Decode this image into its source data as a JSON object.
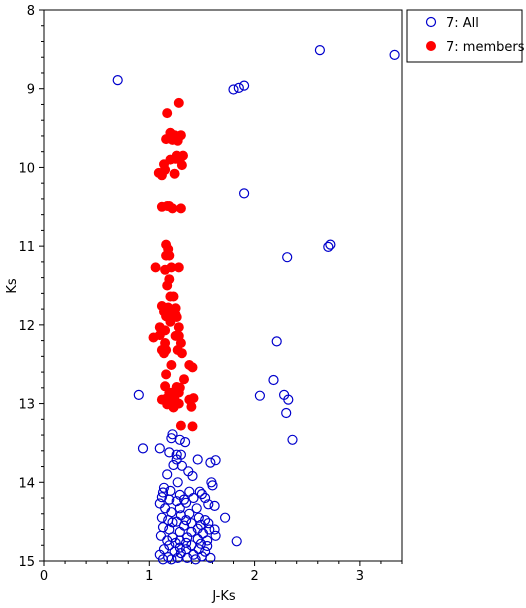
{
  "chart_data": {
    "type": "scatter",
    "xlabel": "J-Ks",
    "ylabel": "Ks",
    "xlim": [
      0,
      3.4
    ],
    "ylim": [
      8,
      15
    ],
    "y_inverted": true,
    "x_ticks": [
      0,
      1,
      2,
      3
    ],
    "y_ticks": [
      8,
      9,
      10,
      11,
      12,
      13,
      14,
      15
    ],
    "legend_placement": "top-right outside",
    "series": [
      {
        "name": "7: All",
        "marker": "open-circle",
        "color": "#0000cc",
        "points": [
          [
            2.62,
            8.51
          ],
          [
            3.33,
            8.57
          ],
          [
            0.7,
            8.89
          ],
          [
            1.9,
            8.96
          ],
          [
            1.85,
            8.99
          ],
          [
            1.8,
            9.01
          ],
          [
            1.9,
            10.33
          ],
          [
            2.72,
            10.98
          ],
          [
            2.7,
            11.01
          ],
          [
            2.31,
            11.14
          ],
          [
            2.21,
            12.21
          ],
          [
            2.18,
            12.7
          ],
          [
            0.9,
            12.89
          ],
          [
            2.05,
            12.9
          ],
          [
            2.28,
            12.89
          ],
          [
            2.32,
            12.95
          ],
          [
            2.3,
            13.12
          ],
          [
            2.36,
            13.46
          ],
          [
            0.94,
            13.57
          ],
          [
            1.1,
            13.57
          ],
          [
            1.22,
            13.39
          ],
          [
            1.21,
            13.44
          ],
          [
            1.29,
            13.46
          ],
          [
            1.34,
            13.49
          ],
          [
            1.19,
            13.62
          ],
          [
            1.26,
            13.65
          ],
          [
            1.3,
            13.65
          ],
          [
            1.26,
            13.71
          ],
          [
            1.23,
            13.78
          ],
          [
            1.31,
            13.79
          ],
          [
            1.58,
            13.75
          ],
          [
            1.63,
            13.72
          ],
          [
            1.37,
            13.86
          ],
          [
            1.46,
            13.71
          ],
          [
            1.17,
            13.9
          ],
          [
            1.41,
            13.92
          ],
          [
            1.27,
            14.0
          ],
          [
            1.59,
            14.0
          ],
          [
            1.6,
            14.04
          ],
          [
            1.14,
            14.07
          ],
          [
            1.13,
            14.13
          ],
          [
            1.2,
            14.11
          ],
          [
            1.38,
            14.12
          ],
          [
            1.48,
            14.12
          ],
          [
            1.12,
            14.19
          ],
          [
            1.29,
            14.16
          ],
          [
            1.5,
            14.15
          ],
          [
            1.19,
            14.22
          ],
          [
            1.26,
            14.24
          ],
          [
            1.33,
            14.22
          ],
          [
            1.42,
            14.2
          ],
          [
            1.53,
            14.2
          ],
          [
            1.1,
            14.27
          ],
          [
            1.35,
            14.26
          ],
          [
            1.56,
            14.28
          ],
          [
            1.62,
            14.3
          ],
          [
            1.15,
            14.33
          ],
          [
            1.29,
            14.33
          ],
          [
            1.45,
            14.33
          ],
          [
            1.21,
            14.38
          ],
          [
            1.38,
            14.4
          ],
          [
            1.3,
            14.42
          ],
          [
            1.12,
            14.45
          ],
          [
            1.47,
            14.45
          ],
          [
            1.18,
            14.48
          ],
          [
            1.26,
            14.5
          ],
          [
            1.35,
            14.48
          ],
          [
            1.53,
            14.48
          ],
          [
            1.72,
            14.45
          ],
          [
            1.22,
            14.51
          ],
          [
            1.4,
            14.52
          ],
          [
            1.49,
            14.54
          ],
          [
            1.56,
            14.52
          ],
          [
            1.13,
            14.57
          ],
          [
            1.33,
            14.55
          ],
          [
            1.19,
            14.6
          ],
          [
            1.46,
            14.59
          ],
          [
            1.57,
            14.6
          ],
          [
            1.62,
            14.6
          ],
          [
            1.29,
            14.63
          ],
          [
            1.4,
            14.63
          ],
          [
            1.51,
            14.65
          ],
          [
            1.11,
            14.68
          ],
          [
            1.22,
            14.7
          ],
          [
            1.36,
            14.7
          ],
          [
            1.63,
            14.68
          ],
          [
            1.17,
            14.74
          ],
          [
            1.29,
            14.74
          ],
          [
            1.46,
            14.72
          ],
          [
            1.55,
            14.74
          ],
          [
            1.25,
            14.77
          ],
          [
            1.35,
            14.77
          ],
          [
            1.49,
            14.78
          ],
          [
            1.83,
            14.75
          ],
          [
            1.19,
            14.8
          ],
          [
            1.4,
            14.8
          ],
          [
            1.29,
            14.83
          ],
          [
            1.55,
            14.81
          ],
          [
            1.14,
            14.85
          ],
          [
            1.35,
            14.85
          ],
          [
            1.47,
            14.85
          ],
          [
            1.24,
            14.88
          ],
          [
            1.53,
            14.88
          ],
          [
            1.1,
            14.92
          ],
          [
            1.3,
            14.9
          ],
          [
            1.42,
            14.92
          ],
          [
            1.18,
            14.95
          ],
          [
            1.27,
            14.96
          ],
          [
            1.36,
            14.96
          ],
          [
            1.5,
            14.94
          ],
          [
            1.58,
            14.96
          ],
          [
            1.13,
            14.98
          ],
          [
            1.21,
            14.98
          ],
          [
            1.44,
            14.98
          ]
        ]
      },
      {
        "name": "7: members",
        "marker": "filled-circle",
        "color": "#ff0000",
        "points": [
          [
            1.28,
            9.18
          ],
          [
            1.17,
            9.31
          ],
          [
            1.2,
            9.56
          ],
          [
            1.24,
            9.59
          ],
          [
            1.3,
            9.59
          ],
          [
            1.16,
            9.64
          ],
          [
            1.22,
            9.65
          ],
          [
            1.27,
            9.66
          ],
          [
            1.26,
            9.85
          ],
          [
            1.32,
            9.85
          ],
          [
            1.2,
            9.9
          ],
          [
            1.25,
            9.89
          ],
          [
            1.29,
            9.9
          ],
          [
            1.14,
            9.96
          ],
          [
            1.31,
            9.97
          ],
          [
            1.15,
            10.03
          ],
          [
            1.09,
            10.07
          ],
          [
            1.12,
            10.1
          ],
          [
            1.24,
            10.08
          ],
          [
            1.12,
            10.5
          ],
          [
            1.17,
            10.49
          ],
          [
            1.19,
            10.49
          ],
          [
            1.22,
            10.52
          ],
          [
            1.3,
            10.52
          ],
          [
            1.16,
            10.98
          ],
          [
            1.18,
            11.04
          ],
          [
            1.16,
            11.12
          ],
          [
            1.19,
            11.12
          ],
          [
            1.06,
            11.27
          ],
          [
            1.21,
            11.27
          ],
          [
            1.15,
            11.3
          ],
          [
            1.28,
            11.27
          ],
          [
            1.19,
            11.42
          ],
          [
            1.17,
            11.5
          ],
          [
            1.2,
            11.64
          ],
          [
            1.23,
            11.64
          ],
          [
            1.12,
            11.76
          ],
          [
            1.18,
            11.78
          ],
          [
            1.25,
            11.79
          ],
          [
            1.14,
            11.83
          ],
          [
            1.21,
            11.86
          ],
          [
            1.16,
            11.89
          ],
          [
            1.25,
            11.87
          ],
          [
            1.26,
            11.9
          ],
          [
            1.2,
            11.96
          ],
          [
            1.1,
            12.03
          ],
          [
            1.28,
            12.03
          ],
          [
            1.15,
            12.07
          ],
          [
            1.28,
            12.14
          ],
          [
            1.04,
            12.16
          ],
          [
            1.1,
            12.13
          ],
          [
            1.25,
            12.14
          ],
          [
            1.15,
            12.23
          ],
          [
            1.3,
            12.23
          ],
          [
            1.12,
            12.32
          ],
          [
            1.16,
            12.32
          ],
          [
            1.27,
            12.32
          ],
          [
            1.14,
            12.36
          ],
          [
            1.31,
            12.36
          ],
          [
            1.21,
            12.51
          ],
          [
            1.38,
            12.51
          ],
          [
            1.41,
            12.54
          ],
          [
            1.16,
            12.63
          ],
          [
            1.33,
            12.69
          ],
          [
            1.15,
            12.78
          ],
          [
            1.26,
            12.79
          ],
          [
            1.29,
            12.8
          ],
          [
            1.19,
            12.86
          ],
          [
            1.22,
            12.86
          ],
          [
            1.28,
            12.86
          ],
          [
            1.42,
            12.93
          ],
          [
            1.12,
            12.95
          ],
          [
            1.16,
            12.94
          ],
          [
            1.24,
            12.95
          ],
          [
            1.38,
            12.95
          ],
          [
            1.28,
            13.0
          ],
          [
            1.17,
            13.01
          ],
          [
            1.4,
            13.04
          ],
          [
            1.23,
            13.05
          ],
          [
            1.3,
            13.28
          ],
          [
            1.41,
            13.29
          ]
        ]
      }
    ]
  }
}
